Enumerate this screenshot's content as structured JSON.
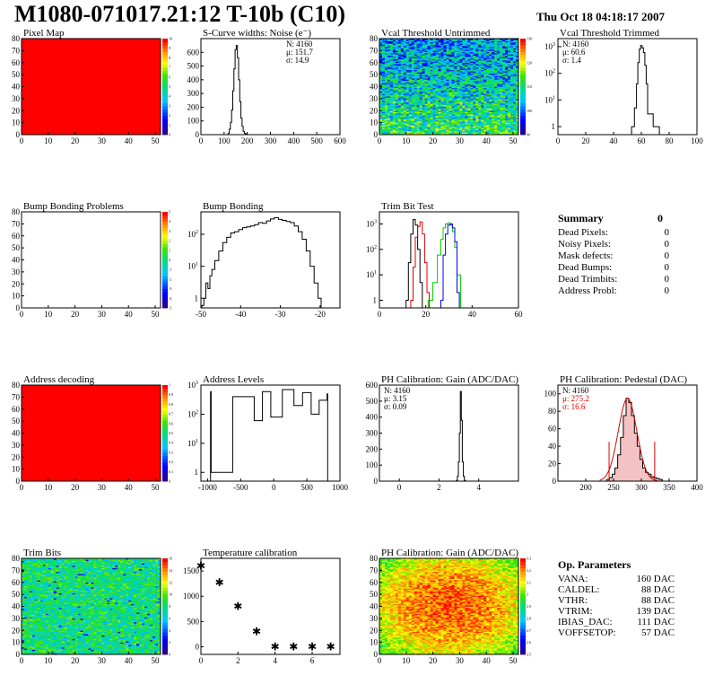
{
  "header": {
    "title": "M1080-071017.21:12 T-10b (C10)",
    "date": "Thu Oct 18 04:18:17 2007"
  },
  "summary": {
    "title": "Summary",
    "title_value": "0",
    "rows": [
      {
        "label": "Dead Pixels:",
        "value": "0"
      },
      {
        "label": "Noisy Pixels:",
        "value": "0"
      },
      {
        "label": "Mask defects:",
        "value": "0"
      },
      {
        "label": "Dead Bumps:",
        "value": "0"
      },
      {
        "label": "Dead Trimbits:",
        "value": "0"
      },
      {
        "label": "Address Probl:",
        "value": "0"
      }
    ]
  },
  "op_params": {
    "title": "Op. Parameters",
    "rows": [
      {
        "label": "VANA:",
        "value": "160 DAC"
      },
      {
        "label": "CALDEL:",
        "value": "88 DAC"
      },
      {
        "label": "VTHR:",
        "value": "88 DAC"
      },
      {
        "label": "VTRIM:",
        "value": "139 DAC"
      },
      {
        "label": "IBIAS_DAC:",
        "value": "111 DAC"
      },
      {
        "label": "VOFFSETOP:",
        "value": "57 DAC"
      }
    ]
  },
  "colors": {
    "heat_red": "#ff0000",
    "fit_red": "#dd0000",
    "trim_green": "#00cc00",
    "trim_blue": "#0000ee",
    "hist_line": "#000000"
  },
  "chart_data": [
    {
      "id": "pixel-map",
      "type": "heatmap",
      "title": "Pixel Map",
      "xlim": [
        0,
        52
      ],
      "ylim": [
        0,
        80
      ],
      "x_ticks": [
        0,
        10,
        20,
        30,
        40,
        50
      ],
      "y_ticks": [
        0,
        10,
        20,
        30,
        40,
        50,
        60,
        70,
        80
      ],
      "fill": "uniform",
      "value": 10,
      "z_ticks": [
        0,
        1,
        2,
        3,
        4,
        5,
        6,
        7,
        8,
        9,
        10
      ]
    },
    {
      "id": "scurve-noise",
      "type": "histogram",
      "title": "S-Curve widths: Noise (e⁻)",
      "xlim": [
        0,
        600
      ],
      "ylim": [
        0,
        700
      ],
      "log_y": false,
      "x_ticks": [
        0,
        100,
        200,
        300,
        400,
        500,
        600
      ],
      "y_ticks": [
        0,
        100,
        200,
        300,
        400,
        500,
        600
      ],
      "bins": [
        [
          120,
          10
        ],
        [
          125,
          40
        ],
        [
          130,
          90
        ],
        [
          135,
          180
        ],
        [
          140,
          320
        ],
        [
          145,
          480
        ],
        [
          150,
          620
        ],
        [
          155,
          650
        ],
        [
          160,
          560
        ],
        [
          165,
          400
        ],
        [
          170,
          240
        ],
        [
          175,
          120
        ],
        [
          180,
          60
        ],
        [
          185,
          25
        ],
        [
          190,
          10
        ],
        [
          195,
          5
        ]
      ],
      "stats": [
        "N: 4160",
        "μ: 151.7",
        "σ: 14.9"
      ]
    },
    {
      "id": "vcal-untrimmed",
      "type": "heatmap",
      "title": "Vcal Threshold Untrimmed",
      "xlim": [
        0,
        52
      ],
      "ylim": [
        0,
        80
      ],
      "x_ticks": [
        0,
        10,
        20,
        30,
        40,
        50
      ],
      "y_ticks": [
        0,
        10,
        20,
        30,
        40,
        50,
        60,
        70,
        80
      ],
      "fill": "noise-cool",
      "z_ticks": [
        90,
        100,
        110,
        120,
        130
      ]
    },
    {
      "id": "vcal-trimmed",
      "type": "histogram",
      "title": "Vcal Threshold Trimmed",
      "xlim": [
        0,
        100
      ],
      "ylim": [
        0.5,
        2000
      ],
      "log_y": true,
      "x_ticks": [
        0,
        20,
        40,
        60,
        80,
        100
      ],
      "bins": [
        [
          54,
          1
        ],
        [
          56,
          5
        ],
        [
          57,
          40
        ],
        [
          58,
          250
        ],
        [
          59,
          800
        ],
        [
          60,
          1100
        ],
        [
          61,
          900
        ],
        [
          62,
          600
        ],
        [
          63,
          200
        ],
        [
          64,
          40
        ],
        [
          65,
          3
        ],
        [
          72,
          1
        ]
      ],
      "stats": [
        "N: 4160",
        "μ: 60.6",
        "σ: 1.4"
      ]
    },
    {
      "id": "bump-problems",
      "type": "heatmap",
      "title": "Bump Bonding Problems",
      "xlim": [
        0,
        52
      ],
      "ylim": [
        0,
        80
      ],
      "x_ticks": [
        0,
        10,
        20,
        30,
        40,
        50
      ],
      "y_ticks": [
        0,
        10,
        20,
        30,
        40,
        50,
        60,
        70,
        80
      ],
      "fill": "empty",
      "z_ticks": [
        -5,
        -4,
        -3,
        -2,
        -1,
        0,
        1,
        2,
        3,
        4,
        5
      ]
    },
    {
      "id": "bump-bonding",
      "type": "histogram",
      "title": "Bump Bonding",
      "xlim": [
        -50,
        -15
      ],
      "ylim": [
        0.5,
        500
      ],
      "log_y": true,
      "x_ticks": [
        -50,
        -40,
        -30,
        -20
      ],
      "bins": [
        [
          -49.5,
          0.6
        ],
        [
          -49,
          1
        ],
        [
          -48.5,
          3
        ],
        [
          -48,
          2
        ],
        [
          -47.5,
          5
        ],
        [
          -47,
          8
        ],
        [
          -46,
          15
        ],
        [
          -45,
          30
        ],
        [
          -44,
          55
        ],
        [
          -43,
          80
        ],
        [
          -42,
          110
        ],
        [
          -41,
          120
        ],
        [
          -40,
          140
        ],
        [
          -39,
          160
        ],
        [
          -38,
          170
        ],
        [
          -37,
          180
        ],
        [
          -36,
          200
        ],
        [
          -35,
          230
        ],
        [
          -34,
          220
        ],
        [
          -33,
          260
        ],
        [
          -32,
          300
        ],
        [
          -31,
          330
        ],
        [
          -30,
          290
        ],
        [
          -29,
          270
        ],
        [
          -28,
          250
        ],
        [
          -27,
          230
        ],
        [
          -26,
          180
        ],
        [
          -25,
          120
        ],
        [
          -24,
          70
        ],
        [
          -23,
          30
        ],
        [
          -22,
          10
        ],
        [
          -21,
          3
        ],
        [
          -20,
          1
        ]
      ]
    },
    {
      "id": "trim-bit-test",
      "type": "histogram",
      "title": "Trim Bit Test",
      "xlim": [
        0,
        60
      ],
      "ylim": [
        0.5,
        3000
      ],
      "log_y": true,
      "x_ticks": [
        0,
        20,
        40,
        60
      ],
      "series": [
        {
          "color": "#000000",
          "bins": [
            [
              12,
              1
            ],
            [
              13,
              30
            ],
            [
              14,
              400
            ],
            [
              15,
              1500
            ],
            [
              16,
              900
            ],
            [
              17,
              100
            ],
            [
              18,
              5
            ]
          ]
        },
        {
          "color": "#dd0000",
          "bins": [
            [
              14,
              1
            ],
            [
              15,
              20
            ],
            [
              16,
              300
            ],
            [
              17,
              800
            ],
            [
              18,
              1200
            ],
            [
              19,
              400
            ],
            [
              20,
              30
            ],
            [
              21,
              2
            ]
          ]
        },
        {
          "color": "#00cc00",
          "bins": [
            [
              22,
              1
            ],
            [
              24,
              5
            ],
            [
              26,
              60
            ],
            [
              27,
              250
            ],
            [
              28,
              700
            ],
            [
              29,
              1000
            ],
            [
              30,
              1100
            ],
            [
              31,
              900
            ],
            [
              32,
              500
            ],
            [
              33,
              120
            ],
            [
              34,
              10
            ]
          ]
        },
        {
          "color": "#0000ee",
          "bins": [
            [
              27,
              1
            ],
            [
              28,
              60
            ],
            [
              29,
              400
            ],
            [
              30,
              900
            ],
            [
              31,
              1000
            ],
            [
              32,
              700
            ],
            [
              33,
              200
            ],
            [
              34,
              2
            ]
          ]
        }
      ]
    },
    {
      "id": "address-decoding",
      "type": "heatmap",
      "title": "Address decoding",
      "xlim": [
        0,
        52
      ],
      "ylim": [
        0,
        80
      ],
      "x_ticks": [
        0,
        10,
        20,
        30,
        40,
        50
      ],
      "y_ticks": [
        0,
        10,
        20,
        30,
        40,
        50,
        60,
        70,
        80
      ],
      "fill": "uniform",
      "value": 1,
      "z_ticks": [
        0,
        0.1,
        0.2,
        0.3,
        0.4,
        0.5,
        0.6,
        0.7,
        0.8,
        0.9,
        1
      ]
    },
    {
      "id": "address-levels",
      "type": "histogram",
      "title": "Address Levels",
      "xlim": [
        -1100,
        1000
      ],
      "ylim": [
        0.5,
        1000
      ],
      "log_y": true,
      "x_ticks": [
        -1000,
        -500,
        0,
        500,
        1000
      ],
      "bins": [
        [
          -950,
          600
        ],
        [
          -940,
          1
        ],
        [
          -300,
          400
        ],
        [
          -290,
          60
        ],
        [
          -50,
          600
        ],
        [
          -40,
          80
        ],
        [
          300,
          700
        ],
        [
          310,
          200
        ],
        [
          560,
          550
        ],
        [
          570,
          100
        ],
        [
          800,
          300
        ],
        [
          810,
          500
        ]
      ]
    },
    {
      "id": "ph-gain-hist",
      "type": "histogram",
      "title": "PH Calibration: Gain (ADC/DAC)",
      "xlim": [
        -1,
        6
      ],
      "ylim": [
        0,
        600
      ],
      "log_y": false,
      "x_ticks": [
        0,
        2,
        4
      ],
      "y_ticks": [
        0,
        100,
        200,
        300,
        400,
        500,
        600
      ],
      "bins": [
        [
          2.9,
          5
        ],
        [
          2.95,
          30
        ],
        [
          3.0,
          120
        ],
        [
          3.05,
          300
        ],
        [
          3.1,
          560
        ],
        [
          3.15,
          380
        ],
        [
          3.2,
          120
        ],
        [
          3.25,
          30
        ],
        [
          3.3,
          5
        ]
      ],
      "stats": [
        "N: 4160",
        "μ: 3.15",
        "σ: 0.09"
      ]
    },
    {
      "id": "ph-pedestal",
      "type": "histogram",
      "title": "PH Calibration: Pedestal (DAC)",
      "xlim": [
        150,
        400
      ],
      "ylim": [
        0,
        110
      ],
      "log_y": false,
      "x_ticks": [
        200,
        250,
        300,
        350,
        400
      ],
      "y_ticks": [
        0,
        20,
        40,
        60,
        80,
        100
      ],
      "bins": [
        [
          240,
          2
        ],
        [
          245,
          4
        ],
        [
          250,
          8
        ],
        [
          255,
          15
        ],
        [
          260,
          30
        ],
        [
          265,
          50
        ],
        [
          270,
          75
        ],
        [
          275,
          95
        ],
        [
          280,
          90
        ],
        [
          285,
          75
        ],
        [
          290,
          55
        ],
        [
          295,
          40
        ],
        [
          300,
          25
        ],
        [
          305,
          15
        ],
        [
          310,
          10
        ],
        [
          315,
          8
        ],
        [
          320,
          5
        ],
        [
          325,
          4
        ],
        [
          330,
          3
        ],
        [
          335,
          2
        ]
      ],
      "cut_lines": [
        242,
        324
      ],
      "stats": [
        "N: 4160",
        "μ: 275.2",
        "σ: 16.6"
      ]
    },
    {
      "id": "trim-bits",
      "type": "heatmap",
      "title": "Trim Bits",
      "xlim": [
        0,
        52
      ],
      "ylim": [
        0,
        80
      ],
      "x_ticks": [
        0,
        10,
        20,
        30,
        40,
        50
      ],
      "y_ticks": [
        0,
        10,
        20,
        30,
        40,
        50,
        60,
        70,
        80
      ],
      "fill": "noise-green",
      "z_ticks": [
        0,
        2,
        4,
        6,
        8,
        10,
        12,
        14,
        16
      ]
    },
    {
      "id": "temperature-calibration",
      "type": "scatter",
      "title": "Temperature calibration",
      "xlim": [
        0,
        7.5
      ],
      "ylim": [
        -150,
        1750
      ],
      "x_ticks": [
        0,
        2,
        4,
        6
      ],
      "y_ticks": [
        0,
        500,
        1000,
        1500
      ],
      "x": [
        0,
        1,
        2,
        3,
        4,
        5,
        6,
        7
      ],
      "y": [
        1600,
        1270,
        800,
        300,
        0,
        0,
        0,
        0
      ]
    },
    {
      "id": "ph-gain-map",
      "type": "heatmap",
      "title": "PH Calibration: Gain (ADC/DAC)",
      "xlim": [
        0,
        52
      ],
      "ylim": [
        0,
        80
      ],
      "x_ticks": [
        0,
        10,
        20,
        30,
        40,
        50
      ],
      "y_ticks": [
        0,
        10,
        20,
        30,
        40,
        50,
        60,
        70,
        80
      ],
      "fill": "noise-warm",
      "z_ticks": [
        2.5,
        2.6,
        2.7,
        2.8,
        2.9,
        3,
        3.1,
        3.2,
        3.3
      ]
    }
  ]
}
